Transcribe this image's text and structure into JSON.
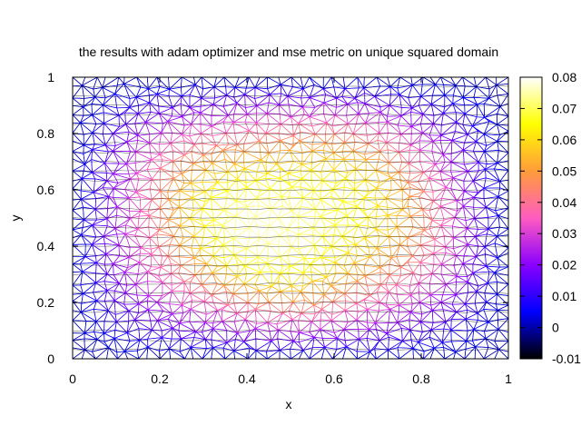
{
  "chart_data": {
    "type": "heatmap",
    "subtype": "triangulated-mesh-surface",
    "title": "the results with adam optimizer and mse metric on unique squared domain",
    "xlabel": "x",
    "ylabel": "y",
    "xlim": [
      0,
      1
    ],
    "ylim": [
      0,
      1
    ],
    "x_ticks": [
      "0",
      "0.2",
      "0.4",
      "0.6",
      "0.8",
      "1"
    ],
    "y_ticks": [
      "0",
      "0.2",
      "0.4",
      "0.6",
      "0.8",
      "1"
    ],
    "colorbar": {
      "min": -0.01,
      "max": 0.08,
      "ticks": [
        "-0.01",
        "0",
        "0.01",
        "0.02",
        "0.03",
        "0.04",
        "0.05",
        "0.06",
        "0.07",
        "0.08"
      ],
      "colors": [
        "#000000",
        "#0000ff",
        "#8a00ff",
        "#ff5cc0",
        "#ff9c3a",
        "#ffff00",
        "#ffffff"
      ]
    },
    "surface": {
      "peak_value": 0.075,
      "peak_location": [
        0.5,
        0.5
      ],
      "boundary_value": 0.0,
      "shape": "sin(pi x) sin(pi y)"
    },
    "grid": true,
    "legend": "none",
    "colorbar_position": "right"
  }
}
